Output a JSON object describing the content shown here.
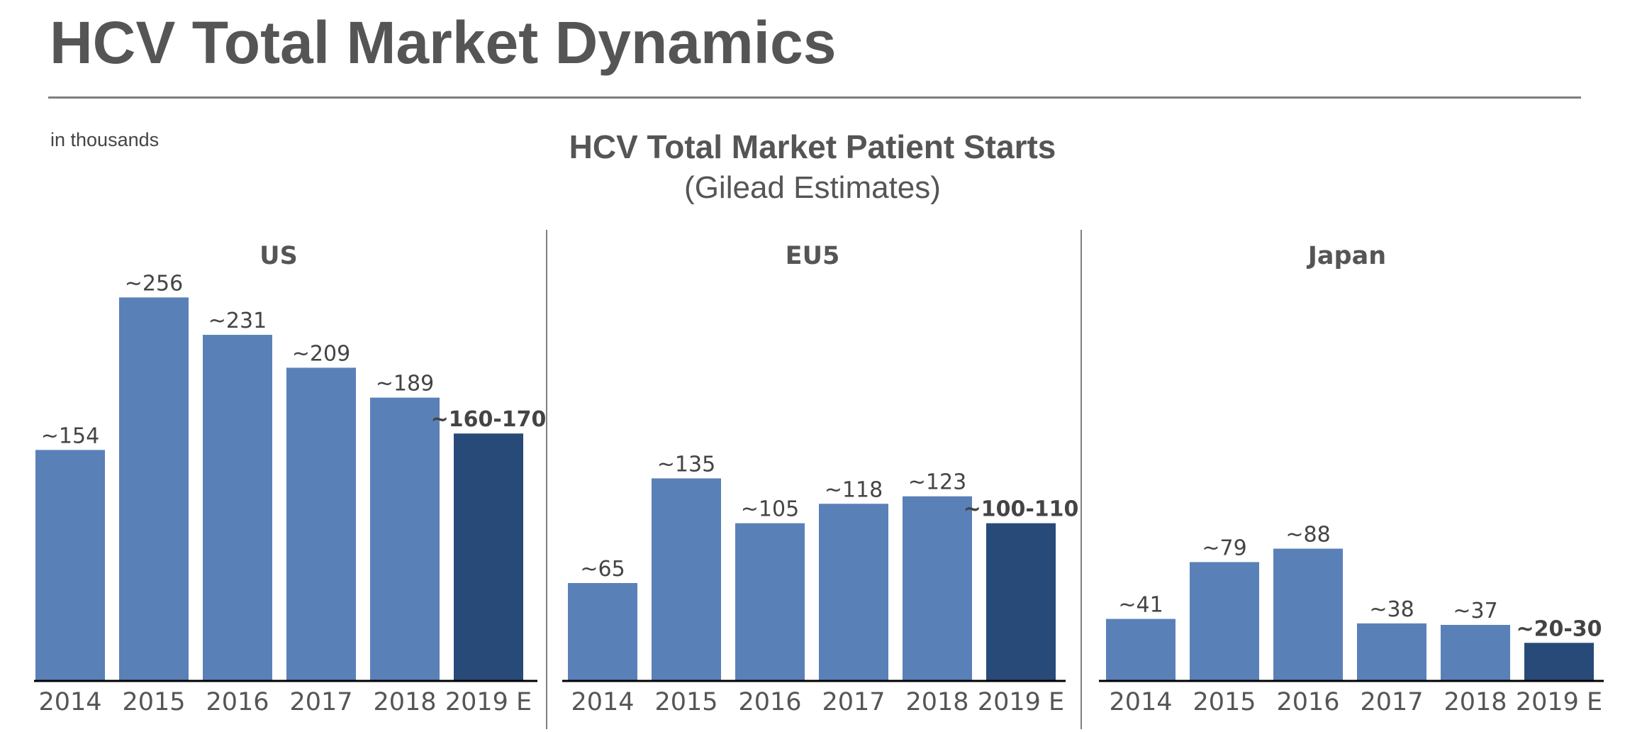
{
  "header": {
    "title": "HCV Total Market Dynamics",
    "units_note": "in thousands"
  },
  "chart_data": {
    "type": "bar",
    "title": "HCV Total Market Patient Starts",
    "subtitle": "(Gilead Estimates)",
    "categories": [
      "2014",
      "2015",
      "2016",
      "2017",
      "2018",
      "2019 E"
    ],
    "colors": {
      "actual": "#5a80b8",
      "estimate": "#284a78"
    },
    "panels": [
      {
        "name": "US",
        "values": [
          154,
          256,
          231,
          209,
          189,
          165
        ],
        "labels": [
          "~154",
          "~256",
          "~231",
          "~209",
          "~189",
          "~160-170"
        ],
        "estimate_range": [
          160,
          170
        ]
      },
      {
        "name": "EU5",
        "values": [
          65,
          135,
          105,
          118,
          123,
          105
        ],
        "labels": [
          "~65",
          "~135",
          "~105",
          "~118",
          "~123",
          "~100-110"
        ],
        "estimate_range": [
          100,
          110
        ]
      },
      {
        "name": "Japan",
        "values": [
          41,
          79,
          88,
          38,
          37,
          25
        ],
        "labels": [
          "~41",
          "~79",
          "~88",
          "~38",
          "~37",
          "~20-30"
        ],
        "estimate_range": [
          20,
          30
        ]
      }
    ]
  }
}
